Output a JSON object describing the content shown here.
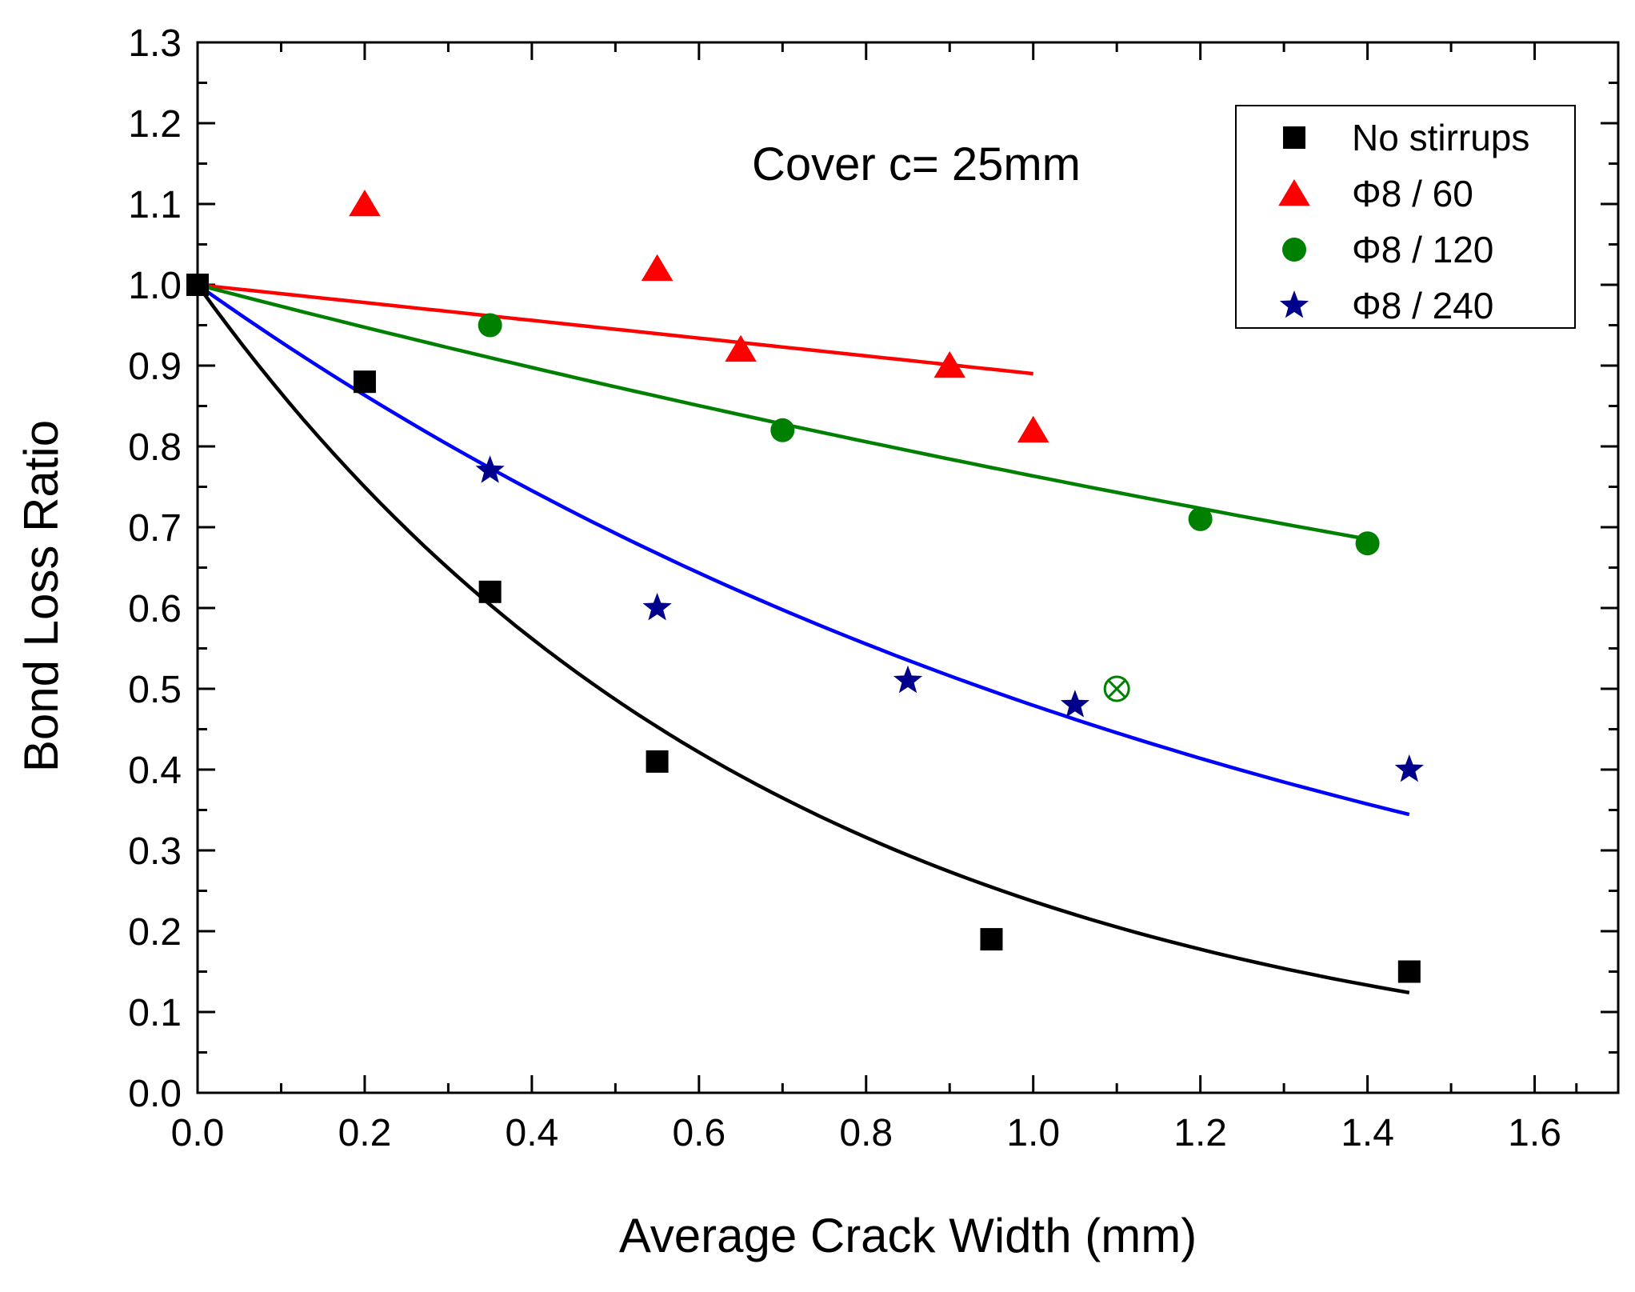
{
  "chart_data": {
    "type": "scatter",
    "title": "",
    "annotation": "Cover c= 25mm",
    "xlabel": "Average Crack Width (mm)",
    "ylabel": "Bond Loss Ratio",
    "xlim": [
      0.0,
      1.7
    ],
    "ylim": [
      0.0,
      1.3
    ],
    "x_ticks": [
      0.0,
      0.2,
      0.4,
      0.6,
      0.8,
      1.0,
      1.2,
      1.4,
      1.6
    ],
    "x_tick_labels": [
      "0.0",
      "0.2",
      "0.4",
      "0.6",
      "0.8",
      "1.0",
      "1.2",
      "1.4",
      "1.6"
    ],
    "y_ticks": [
      0.0,
      0.1,
      0.2,
      0.3,
      0.4,
      0.5,
      0.6,
      0.7,
      0.8,
      0.9,
      1.0,
      1.1,
      1.2,
      1.3
    ],
    "y_tick_labels": [
      "0.0",
      "0.1",
      "0.2",
      "0.3",
      "0.4",
      "0.5",
      "0.6",
      "0.7",
      "0.8",
      "0.9",
      "1.0",
      "1.1",
      "1.2",
      "1.3"
    ],
    "grid": false,
    "legend_position": "top-right",
    "series": [
      {
        "name": "No stirrups",
        "marker": "square",
        "color": "#000000",
        "x": [
          0.0,
          0.2,
          0.35,
          0.55,
          0.95,
          1.45
        ],
        "y": [
          1.0,
          0.88,
          0.62,
          0.41,
          0.19,
          0.15
        ],
        "fit": {
          "kind": "exp",
          "rate": 1.44,
          "x_range": [
            0.0,
            1.45
          ]
        }
      },
      {
        "name": "Φ8 / 60",
        "marker": "triangle",
        "color": "#ff0000",
        "x": [
          0.2,
          0.55,
          0.65,
          0.9,
          1.0
        ],
        "y": [
          1.1,
          1.02,
          0.92,
          0.9,
          0.82
        ],
        "fit": {
          "kind": "linear",
          "intercept": 1.0,
          "slope": -0.11,
          "x_range": [
            0.0,
            1.0
          ]
        }
      },
      {
        "name": "Φ8 / 120",
        "marker": "circle",
        "color": "#008000",
        "x": [
          0.35,
          0.7,
          1.2,
          1.4
        ],
        "y": [
          0.95,
          0.82,
          0.71,
          0.68
        ],
        "fit": {
          "kind": "exp",
          "rate": 0.27,
          "x_range": [
            0.0,
            1.4
          ]
        }
      },
      {
        "name": "Φ8 / 240",
        "marker": "star",
        "color": "#00008b",
        "x": [
          0.35,
          0.55,
          0.85,
          1.05,
          1.45
        ],
        "y": [
          0.77,
          0.6,
          0.51,
          0.48,
          0.4
        ],
        "fit": {
          "kind": "exp",
          "rate": 0.735,
          "x_range": [
            0.0,
            1.45
          ]
        }
      }
    ],
    "extra_points": [
      {
        "marker": "circle-cross-open",
        "color": "#008000",
        "x": 1.1,
        "y": 0.5
      }
    ],
    "fit_colors": {
      "No stirrups": "#000000",
      "Φ8 / 60": "#ff0000",
      "Φ8 / 120": "#008000",
      "Φ8 / 240": "#0000ff"
    }
  }
}
